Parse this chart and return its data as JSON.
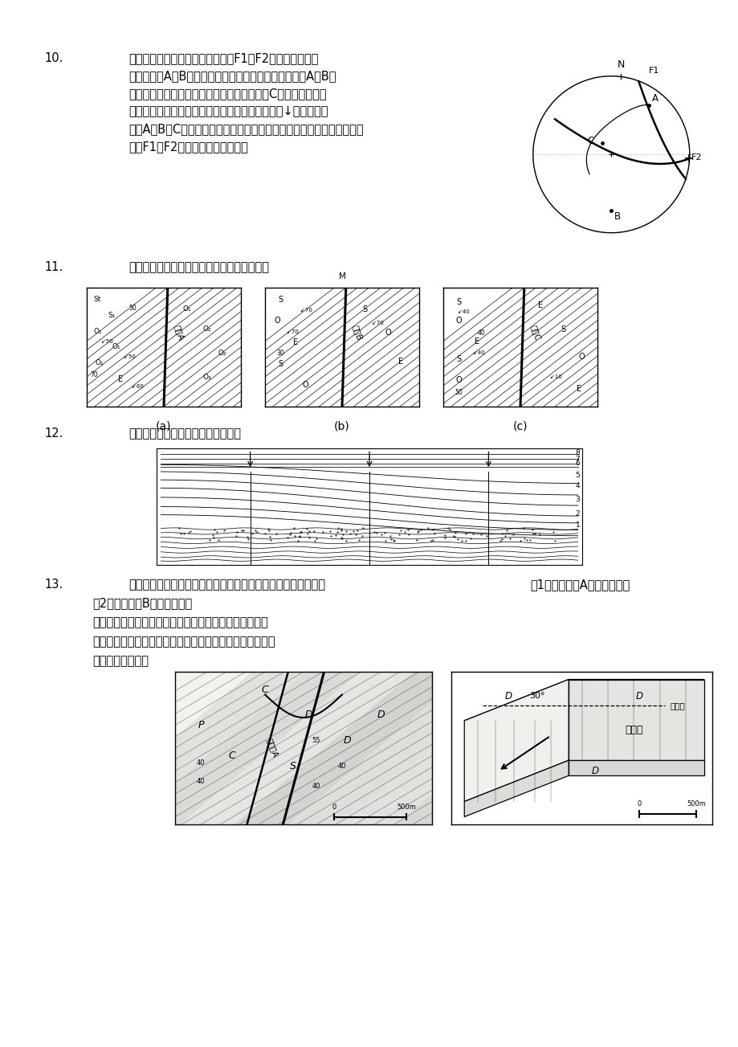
{
  "bg_color": "#ffffff",
  "q10_lines": [
    "右图所示的下半球赤平投影图中，F1和F2为两条共扼断层",
    "面的投影。A、B点所在的大圆弧为共扼断层的公垂面。A、B点",
    "分别为共扼断层面的锐角和钝角平分线投影，C点为共扼断层面",
    "的交线投影。已知共扼断层的锐夹角平分线方向为↓方向，请指",
    "出与A、B、C三个方向所对应的主应力名称，并按照断层复合分类命名方",
    "法对F1和F2这两条断层进行命名。"
  ],
  "q11_text": "请判断下图中沿倾向滑动的走向断层的性质。",
  "q12_text": "请分析下图中同生褶皱的形成历史。",
  "q13_line1": "下图是某地区局部地质图。请根据图件各构造要素的关系判断：",
  "q13_right1": "（1）左图断层A的位移性质；",
  "q13_line2": "（2）右图断层B的位移性质。",
  "q13_extra1": "右图为一断层下盘上的断层面，箭头代表上盘相对于下盘",
  "q13_extra2": "的运动方向（在断层面上的位移矢量）。请用断层复合分类",
  "q13_extra3": "方法命名该断层。"
}
